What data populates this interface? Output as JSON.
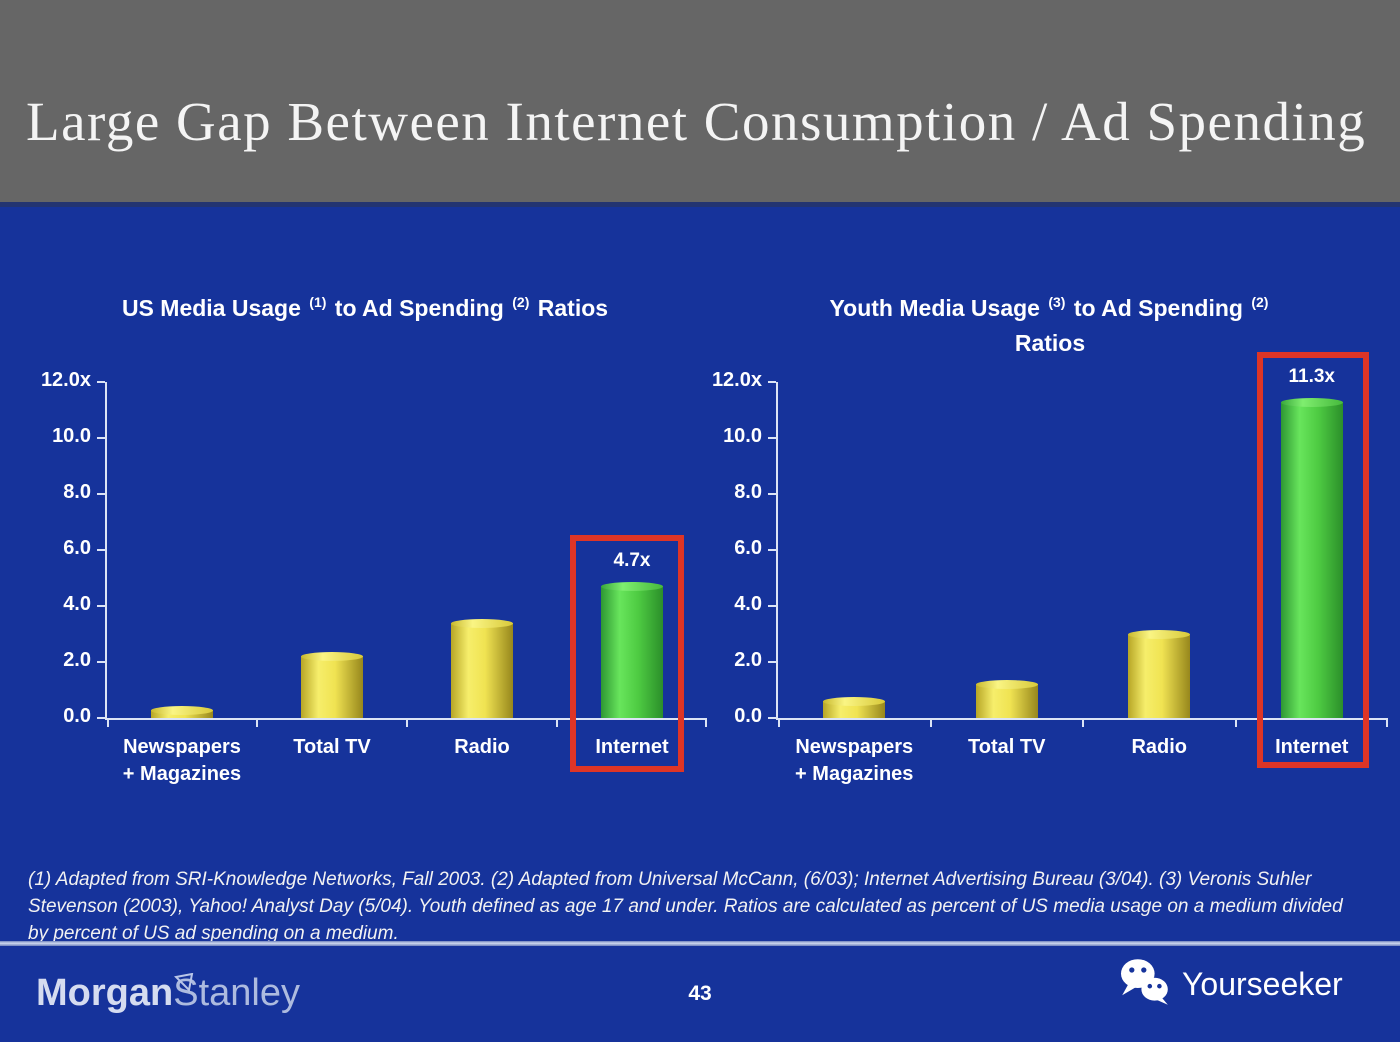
{
  "slide": {
    "title": "Large Gap Between Internet Consumption / Ad Spending",
    "page_number": "43"
  },
  "charts_ui": [
    {
      "title_parts": {
        "pre": "US Media Usage ",
        "sup_a": "(1)",
        "mid": " to Ad Spending ",
        "sup_b": "(2)",
        "tail": " Ratios",
        "line2": ""
      }
    },
    {
      "title_parts": {
        "pre": "Youth Media Usage ",
        "sup_a": "(3)",
        "mid": " to Ad Spending ",
        "sup_b": "(2)",
        "tail": "",
        "line2": "Ratios"
      }
    }
  ],
  "chart_data": [
    {
      "type": "bar",
      "title": "US Media Usage (1) to Ad Spending (2) Ratios",
      "categories": [
        "Newspapers + Magazines",
        "Total TV",
        "Radio",
        "Internet"
      ],
      "category_lines": [
        [
          "Newspapers",
          "+ Magazines"
        ],
        [
          "Total TV"
        ],
        [
          "Radio"
        ],
        [
          "Internet"
        ]
      ],
      "values": [
        0.3,
        2.2,
        3.4,
        4.7
      ],
      "bar_labels": [
        "",
        "",
        "",
        "4.7x"
      ],
      "bar_colors": [
        "yellow",
        "yellow",
        "yellow",
        "green"
      ],
      "highlighted_category": "Internet",
      "ylim": [
        0,
        12
      ],
      "ytick_labels": [
        "12.0x",
        "10.0",
        "8.0",
        "6.0",
        "4.0",
        "2.0",
        "0.0"
      ],
      "xlabel": "",
      "ylabel": "",
      "grid": false,
      "legend": "none"
    },
    {
      "type": "bar",
      "title": "Youth Media Usage (3) to Ad Spending (2) Ratios",
      "categories": [
        "Newspapers + Magazines",
        "Total TV",
        "Radio",
        "Internet"
      ],
      "category_lines": [
        [
          "Newspapers",
          "+ Magazines"
        ],
        [
          "Total TV"
        ],
        [
          "Radio"
        ],
        [
          "Internet"
        ]
      ],
      "values": [
        0.6,
        1.2,
        3.0,
        11.3
      ],
      "bar_labels": [
        "",
        "",
        "",
        "11.3x"
      ],
      "bar_colors": [
        "yellow",
        "yellow",
        "yellow",
        "green"
      ],
      "highlighted_category": "Internet",
      "ylim": [
        0,
        12
      ],
      "ytick_labels": [
        "12.0x",
        "10.0",
        "8.0",
        "6.0",
        "4.0",
        "2.0",
        "0.0"
      ],
      "xlabel": "",
      "ylabel": "",
      "grid": false,
      "legend": "none"
    }
  ],
  "footnote_lines": [
    "(1) Adapted from SRI-Knowledge Networks, Fall 2003.  (2) Adapted from Universal McCann, (6/03); Internet Advertising Bureau (3/04). (3) Veronis Suhler",
    "Stevenson (2003), Yahoo! Analyst Day (5/04).  Youth defined as age 17 and under.  Ratios are calculated as percent of US media usage on a medium divided",
    "by percent of US ad spending on a medium."
  ],
  "footer": {
    "brand_bold": "Morgan",
    "brand_light": "Stanley",
    "watermark": "Yourseeker"
  },
  "colors": {
    "background": "#16339B",
    "header_gray": "#666666",
    "highlight_red": "#DE3526",
    "bar_yellow": "#EFE24E",
    "bar_green": "#4FCC43",
    "axis": "#DCE4F5",
    "text": "#FFFFFF"
  }
}
